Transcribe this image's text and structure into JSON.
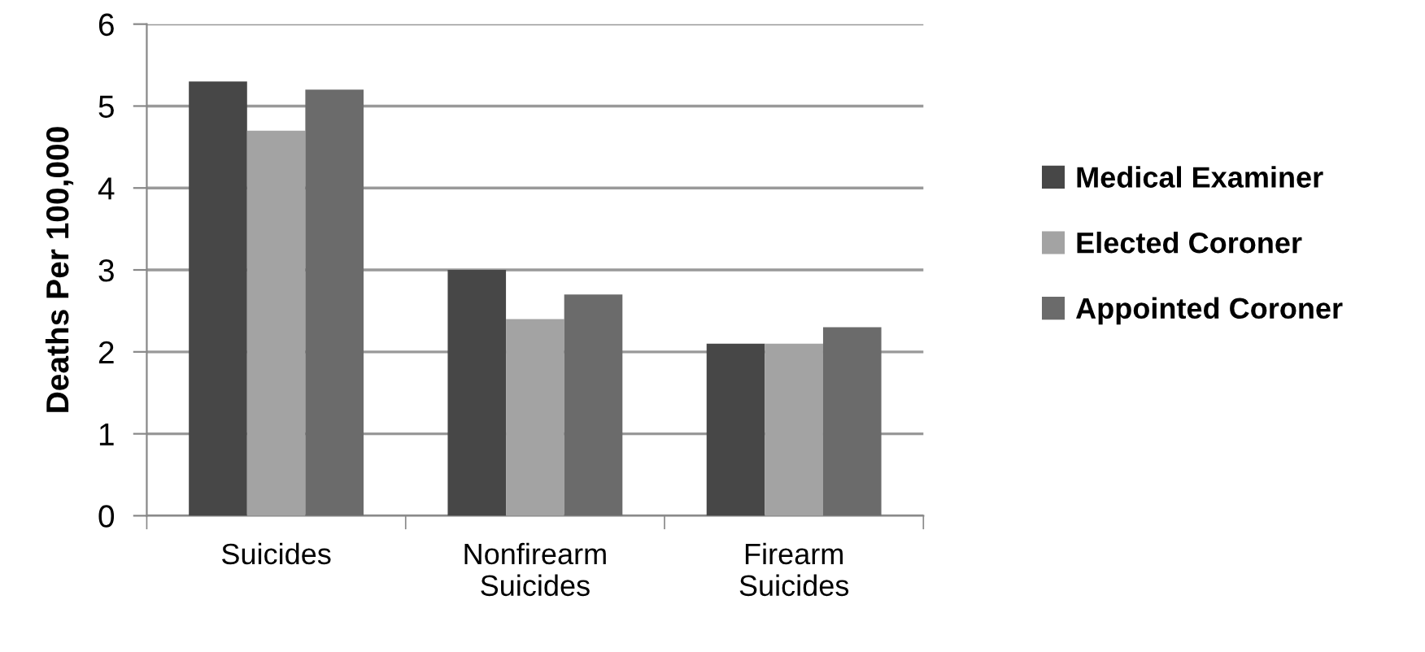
{
  "chart_data": {
    "type": "bar",
    "ylabel": "Deaths Per 100,000",
    "categories": [
      "Suicides",
      "Nonfirearm\nSuicides",
      "Firearm\nSuicides"
    ],
    "series": [
      {
        "name": "Medical Examiner",
        "color": "#474747",
        "values": [
          5.3,
          3.0,
          2.1
        ]
      },
      {
        "name": "Elected Coroner",
        "color": "#a3a3a3",
        "values": [
          4.7,
          2.4,
          2.1
        ]
      },
      {
        "name": "Appointed Coroner",
        "color": "#6b6b6b",
        "values": [
          5.2,
          2.7,
          2.3
        ]
      }
    ],
    "ylim": [
      0,
      6
    ],
    "yticks": [
      0,
      1,
      2,
      3,
      4,
      5,
      6
    ],
    "grid": "y",
    "legend": "right"
  }
}
